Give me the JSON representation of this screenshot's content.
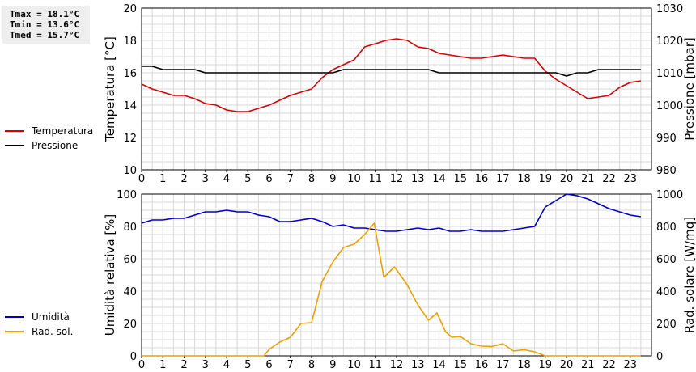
{
  "stats": {
    "tmax": "Tmax = 18.1°C",
    "tmin": "Tmin = 13.6°C",
    "tmed": "Tmed = 15.7°C"
  },
  "colors": {
    "temperatura": "#dd0000",
    "pressione": "#000000",
    "umidita": "#0000cc",
    "radiazione": "#f0a000"
  },
  "legend_top": [
    {
      "label": "Temperatura",
      "color": "#dd0000"
    },
    {
      "label": "Pressione",
      "color": "#000000"
    }
  ],
  "legend_bottom": [
    {
      "label": "Umidità",
      "color": "#0000cc"
    },
    {
      "label": "Rad. sol.",
      "color": "#f0a000"
    }
  ],
  "chart_data": [
    {
      "type": "line",
      "grid": true,
      "xlim": [
        0,
        24
      ],
      "x_ticks": [
        "0",
        "1",
        "2",
        "3",
        "4",
        "5",
        "6",
        "7",
        "8",
        "9",
        "10",
        "11",
        "12",
        "13",
        "14",
        "15",
        "16",
        "17",
        "18",
        "19",
        "20",
        "21",
        "22",
        "23"
      ],
      "ylabel": "Temperatura [°C]",
      "ylim": [
        10,
        20
      ],
      "y_ticks": [
        10,
        12,
        14,
        16,
        18,
        20
      ],
      "y2label": "Pressione [mbar]",
      "y2lim": [
        980,
        1030
      ],
      "y2_ticks": [
        980,
        990,
        1000,
        1010,
        1020,
        1030
      ],
      "series": [
        {
          "name": "Temperatura",
          "axis": "left",
          "x": [
            0,
            0.5,
            1,
            1.5,
            2,
            2.5,
            3,
            3.5,
            4,
            4.5,
            5,
            5.5,
            6,
            6.5,
            7,
            7.5,
            8,
            8.5,
            9,
            9.5,
            10,
            10.5,
            11,
            11.5,
            12,
            12.5,
            13,
            13.5,
            14,
            14.5,
            15,
            15.5,
            16,
            16.5,
            17,
            17.5,
            18,
            18.5,
            19,
            19.5,
            20,
            20.5,
            21,
            21.5,
            22,
            22.5,
            23,
            23.5
          ],
          "y": [
            15.3,
            15.0,
            14.8,
            14.6,
            14.6,
            14.4,
            14.1,
            14.0,
            13.7,
            13.6,
            13.6,
            13.8,
            14.0,
            14.3,
            14.6,
            14.8,
            15.0,
            15.7,
            16.2,
            16.5,
            16.8,
            17.6,
            17.8,
            18.0,
            18.1,
            18.0,
            17.6,
            17.5,
            17.2,
            17.1,
            17.0,
            16.9,
            16.9,
            17.0,
            17.1,
            17.0,
            16.9,
            16.9,
            16.1,
            15.6,
            15.2,
            14.8,
            14.4,
            14.5,
            14.6,
            15.1,
            15.4,
            15.5
          ]
        },
        {
          "name": "Pressione",
          "axis": "right",
          "x": [
            0,
            0.5,
            1,
            1.5,
            2,
            2.5,
            3,
            3.5,
            4,
            4.5,
            5,
            5.5,
            6,
            6.5,
            7,
            7.5,
            8,
            8.5,
            9,
            9.5,
            10,
            10.5,
            11,
            11.5,
            12,
            12.5,
            13,
            13.5,
            14,
            14.5,
            15,
            15.5,
            16,
            16.5,
            17,
            17.5,
            18,
            18.5,
            19,
            19.5,
            20,
            20.5,
            21,
            21.5,
            22,
            22.5,
            23,
            23.5
          ],
          "y": [
            1012,
            1012,
            1011,
            1011,
            1011,
            1011,
            1010,
            1010,
            1010,
            1010,
            1010,
            1010,
            1010,
            1010,
            1010,
            1010,
            1010,
            1010,
            1010,
            1011,
            1011,
            1011,
            1011,
            1011,
            1011,
            1011,
            1011,
            1011,
            1010,
            1010,
            1010,
            1010,
            1010,
            1010,
            1010,
            1010,
            1010,
            1010,
            1010,
            1010,
            1009,
            1010,
            1010,
            1011,
            1011,
            1011,
            1011,
            1011
          ]
        }
      ]
    },
    {
      "type": "line",
      "grid": true,
      "xlim": [
        0,
        24
      ],
      "x_ticks": [
        "0",
        "1",
        "2",
        "3",
        "4",
        "5",
        "6",
        "7",
        "8",
        "9",
        "10",
        "11",
        "12",
        "13",
        "14",
        "15",
        "16",
        "17",
        "18",
        "19",
        "20",
        "21",
        "22",
        "23"
      ],
      "ylabel": "Umidità relativa [%]",
      "ylim": [
        0,
        100
      ],
      "y_ticks": [
        0,
        20,
        40,
        60,
        80,
        100
      ],
      "y2label": "Rad. solare [W/mq]",
      "y2lim": [
        0,
        1000
      ],
      "y2_ticks": [
        0,
        200,
        400,
        600,
        800,
        1000
      ],
      "series": [
        {
          "name": "Umidità",
          "axis": "left",
          "x": [
            0,
            0.5,
            1,
            1.5,
            2,
            2.5,
            3,
            3.5,
            4,
            4.5,
            5,
            5.5,
            6,
            6.5,
            7,
            7.5,
            8,
            8.5,
            9,
            9.5,
            10,
            10.5,
            11,
            11.5,
            12,
            12.5,
            13,
            13.5,
            14,
            14.5,
            15,
            15.5,
            16,
            16.5,
            17,
            17.5,
            18,
            18.5,
            19,
            19.5,
            20,
            20.5,
            21,
            21.5,
            22,
            22.5,
            23,
            23.5
          ],
          "y": [
            82,
            84,
            84,
            85,
            85,
            87,
            89,
            89,
            90,
            89,
            89,
            87,
            86,
            83,
            83,
            84,
            85,
            83,
            80,
            81,
            79,
            79,
            78,
            77,
            77,
            78,
            79,
            78,
            79,
            77,
            77,
            78,
            77,
            77,
            77,
            78,
            79,
            80,
            92,
            96,
            100,
            99,
            97,
            94,
            91,
            89,
            87,
            86
          ]
        },
        {
          "name": "Rad. sol.",
          "axis": "right",
          "x": [
            0,
            0.5,
            1,
            1.5,
            2,
            2.5,
            3,
            3.5,
            4,
            4.5,
            5,
            5.5,
            5.75,
            6,
            6.5,
            7,
            7.5,
            8,
            8.5,
            9,
            9.5,
            10,
            10.5,
            10.95,
            11.4,
            11.9,
            12.5,
            13,
            13.5,
            13.9,
            14.3,
            14.6,
            15,
            15.5,
            16,
            16.5,
            17,
            17.5,
            18,
            18.5,
            19,
            19.5,
            20,
            20.5,
            21,
            21.5,
            22,
            22.5,
            23,
            23.5
          ],
          "y": [
            0,
            0,
            0,
            0,
            0,
            0,
            0,
            0,
            0,
            0,
            0,
            0,
            0,
            40,
            85,
            115,
            200,
            205,
            460,
            580,
            670,
            690,
            750,
            820,
            485,
            550,
            440,
            315,
            220,
            265,
            150,
            115,
            120,
            75,
            60,
            58,
            75,
            30,
            38,
            25,
            0,
            0,
            0,
            0,
            0,
            0,
            0,
            0,
            0,
            0
          ]
        }
      ]
    }
  ]
}
